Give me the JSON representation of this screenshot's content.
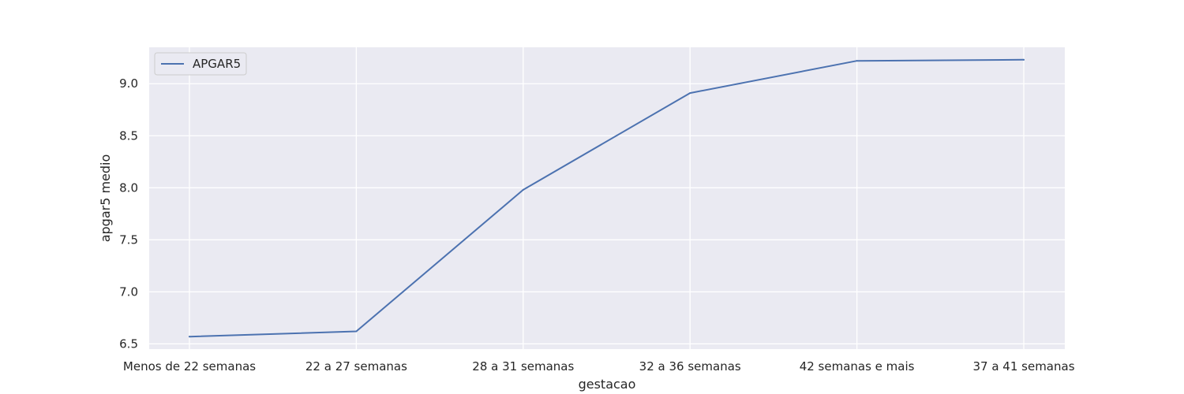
{
  "chart_data": {
    "type": "line",
    "categories": [
      "Menos de 22 semanas",
      "22 a 27 semanas",
      "28 a 31 semanas",
      "32 a 36 semanas",
      "42 semanas e mais",
      "37 a 41 semanas"
    ],
    "series": [
      {
        "name": "APGAR5",
        "color": "#4c72b0",
        "values": [
          6.57,
          6.62,
          7.98,
          8.91,
          9.22,
          9.23
        ]
      }
    ],
    "xlabel": "gestacao",
    "ylabel": "apgar5 medio",
    "ylim": [
      6.45,
      9.35
    ],
    "yticks": [
      6.5,
      7.0,
      7.5,
      8.0,
      8.5,
      9.0
    ],
    "ytick_labels": [
      "6.5",
      "7.0",
      "7.5",
      "8.0",
      "8.5",
      "9.0"
    ],
    "grid": true,
    "legend": "upper-left",
    "background_color": "#eaeaf2",
    "grid_color": "#ffffff"
  }
}
